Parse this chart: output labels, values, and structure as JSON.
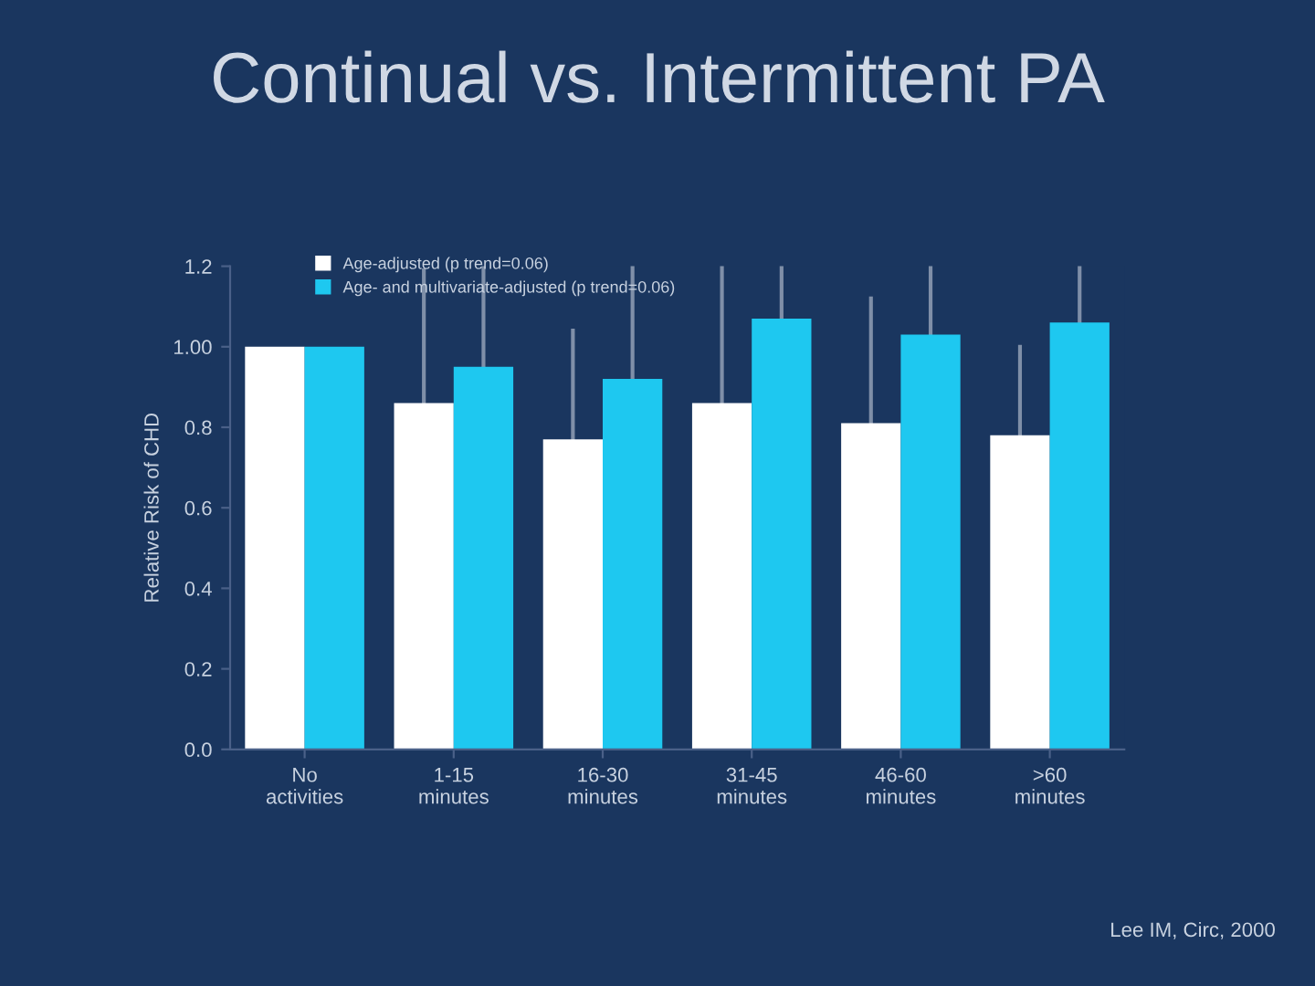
{
  "chart_data": {
    "type": "bar",
    "title": "Continual vs. Intermittent PA",
    "ylabel": "Relative Risk of CHD",
    "categories": [
      "No\nactivities",
      "1-15\nminutes",
      "16-30\nminutes",
      "31-45\nminutes",
      "46-60\nminutes",
      ">60\nminutes"
    ],
    "series": [
      {
        "name": "Age-adjusted (p trend=0.06)",
        "color": "#ffffff",
        "values": [
          1.0,
          0.86,
          0.77,
          0.86,
          0.81,
          0.78
        ],
        "errors": [
          null,
          [
            0.86,
            1.19
          ],
          [
            0.77,
            1.04
          ],
          [
            0.86,
            1.2
          ],
          [
            0.81,
            1.12
          ],
          [
            0.78,
            1.0
          ]
        ]
      },
      {
        "name": "Age- and multivariate-adjusted (p trend=0.06)",
        "color": "#1ec8f0",
        "values": [
          1.0,
          0.95,
          0.92,
          1.07,
          1.03,
          1.06
        ],
        "errors": [
          null,
          [
            0.95,
            1.2
          ],
          [
            0.92,
            1.2
          ],
          [
            1.07,
            1.2
          ],
          [
            1.03,
            1.2
          ],
          [
            1.06,
            1.2
          ]
        ]
      }
    ],
    "ylim": [
      0,
      1.2
    ],
    "yticks": [
      {
        "value": 0,
        "label": "0.0"
      },
      0.2,
      0.4,
      0.6,
      0.8,
      {
        "value": 1.0,
        "label": "1.00"
      },
      1.2
    ],
    "grid": false,
    "legend": "top left",
    "annotations": [
      "Lee IM, Circ, 2000"
    ]
  }
}
